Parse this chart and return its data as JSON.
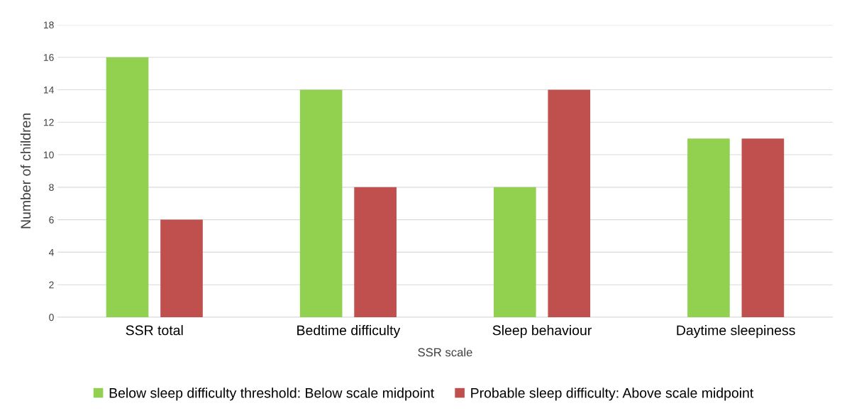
{
  "chart_data": {
    "type": "bar",
    "xlabel": "SSR scale",
    "ylabel": "Number of children",
    "categories": [
      "SSR total",
      "Bedtime difficulty",
      "Sleep behaviour",
      "Daytime sleepiness"
    ],
    "series": [
      {
        "name": "Below sleep difficulty threshold: Below scale midpoint",
        "color": "#92d050",
        "values": [
          16,
          14,
          8,
          11
        ]
      },
      {
        "name": "Probable sleep difficulty: Above scale midpoint",
        "color": "#c0504d",
        "values": [
          6,
          8,
          14,
          11
        ]
      }
    ],
    "ylim": [
      0,
      18
    ],
    "yticks": [
      0,
      2,
      4,
      6,
      8,
      10,
      12,
      14,
      16,
      18
    ],
    "grid": "y",
    "legend": "bottom"
  }
}
